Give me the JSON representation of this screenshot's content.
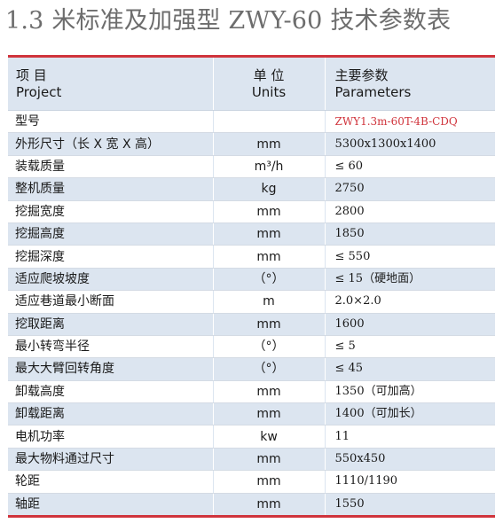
{
  "title": "1.3 米标准及加强型 ZWY-60 技术参数表",
  "header": {
    "item_cn": "项 目",
    "item_en": "Project",
    "unit_cn": "单 位",
    "unit_en": "Units",
    "param_cn": "主要参数",
    "param_en": "Parameters"
  },
  "accent_color": "#d0343c",
  "row_shade_color": "#dce5f0",
  "rows": [
    {
      "item": "型号",
      "unit": "",
      "value": "ZWY1.3m-60T-4B-CDQ",
      "highlight": true
    },
    {
      "item": "外形尺寸（长 X 宽 X 高）",
      "unit": "mm",
      "value": "5300x1300x1400"
    },
    {
      "item": "装载质量",
      "unit": "m³/h",
      "value": "≤ 60"
    },
    {
      "item": "整机质量",
      "unit": "kg",
      "value": "2750"
    },
    {
      "item": "挖掘宽度",
      "unit": "mm",
      "value": "2800"
    },
    {
      "item": "挖掘高度",
      "unit": "mm",
      "value": "1850"
    },
    {
      "item": "挖掘深度",
      "unit": "mm",
      "value": "≤ 550"
    },
    {
      "item": "适应爬坡坡度",
      "unit": "（°）",
      "value": "≤ 15（硬地面）"
    },
    {
      "item": "适应巷道最小断面",
      "unit": "m",
      "value": "2.0×2.0"
    },
    {
      "item": "挖取距离",
      "unit": "mm",
      "value": "1600"
    },
    {
      "item": "最小转弯半径",
      "unit": "（°）",
      "value": "≤ 5"
    },
    {
      "item": "最大大臂回转角度",
      "unit": "（°）",
      "value": "≤ 45"
    },
    {
      "item": "卸载高度",
      "unit": "mm",
      "value": "1350（可加高）"
    },
    {
      "item": "卸载距离",
      "unit": "mm",
      "value": "1400（可加长）"
    },
    {
      "item": "电机功率",
      "unit": "kw",
      "value": "11"
    },
    {
      "item": "最大物料通过尺寸",
      "unit": "mm",
      "value": "550x450"
    },
    {
      "item": "轮距",
      "unit": "mm",
      "value": "1110/1190"
    },
    {
      "item": "轴距",
      "unit": "mm",
      "value": "1550"
    }
  ]
}
